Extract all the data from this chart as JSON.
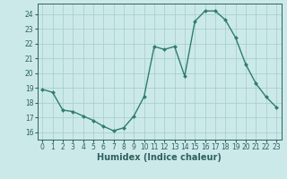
{
  "x": [
    0,
    1,
    2,
    3,
    4,
    5,
    6,
    7,
    8,
    9,
    10,
    11,
    12,
    13,
    14,
    15,
    16,
    17,
    18,
    19,
    20,
    21,
    22,
    23
  ],
  "y": [
    18.9,
    18.7,
    17.5,
    17.4,
    17.1,
    16.8,
    16.4,
    16.1,
    16.3,
    17.1,
    18.4,
    21.8,
    21.6,
    21.8,
    19.8,
    23.5,
    24.2,
    24.2,
    23.6,
    22.4,
    20.6,
    19.3,
    18.4,
    17.7
  ],
  "line_color": "#2e7d6e",
  "marker": "D",
  "marker_size": 2.0,
  "bg_color": "#cce9e9",
  "grid_color": "#aacfcf",
  "tick_label_color": "#2e6060",
  "xlabel": "Humidex (Indice chaleur)",
  "ylim": [
    15.5,
    24.7
  ],
  "yticks": [
    16,
    17,
    18,
    19,
    20,
    21,
    22,
    23,
    24
  ],
  "xticks": [
    0,
    1,
    2,
    3,
    4,
    5,
    6,
    7,
    8,
    9,
    10,
    11,
    12,
    13,
    14,
    15,
    16,
    17,
    18,
    19,
    20,
    21,
    22,
    23
  ],
  "xtick_labels": [
    "0",
    "1",
    "2",
    "3",
    "4",
    "5",
    "6",
    "7",
    "8",
    "9",
    "10",
    "11",
    "12",
    "13",
    "14",
    "15",
    "16",
    "17",
    "18",
    "19",
    "20",
    "21",
    "22",
    "23"
  ],
  "axis_color": "#2e6060",
  "tick_fontsize": 5.5,
  "xlabel_fontsize": 7.0,
  "line_width": 1.0
}
